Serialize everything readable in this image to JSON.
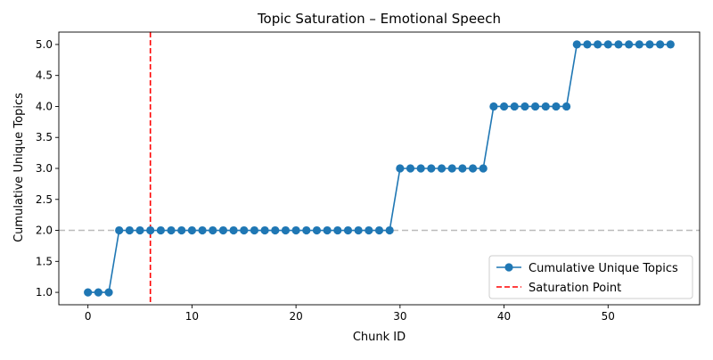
{
  "chart_data": {
    "type": "line",
    "title": "Topic Saturation – Emotional Speech",
    "xlabel": "Chunk ID",
    "ylabel": "Cumulative Unique Topics",
    "xlim": [
      -2.8,
      58.8
    ],
    "ylim": [
      0.8,
      5.2
    ],
    "x_ticks": [
      0,
      10,
      20,
      30,
      40,
      50
    ],
    "x_tick_labels": [
      "0",
      "10",
      "20",
      "30",
      "40",
      "50"
    ],
    "y_ticks": [
      1.0,
      1.5,
      2.0,
      2.5,
      3.0,
      3.5,
      4.0,
      4.5,
      5.0
    ],
    "y_tick_labels": [
      "1.0",
      "1.5",
      "2.0",
      "2.5",
      "3.0",
      "3.5",
      "4.0",
      "4.5",
      "5.0"
    ],
    "grid": false,
    "legend_position": "lower-right",
    "series": [
      {
        "name": "Cumulative Unique Topics",
        "color": "#1f77b4",
        "marker": "circle",
        "x": [
          0,
          1,
          2,
          3,
          4,
          5,
          6,
          7,
          8,
          9,
          10,
          11,
          12,
          13,
          14,
          15,
          16,
          17,
          18,
          19,
          20,
          21,
          22,
          23,
          24,
          25,
          26,
          27,
          28,
          29,
          30,
          31,
          32,
          33,
          34,
          35,
          36,
          37,
          38,
          39,
          40,
          41,
          42,
          43,
          44,
          45,
          46,
          47,
          48,
          49,
          50,
          51,
          52,
          53,
          54,
          55,
          56
        ],
        "y": [
          1,
          1,
          1,
          2,
          2,
          2,
          2,
          2,
          2,
          2,
          2,
          2,
          2,
          2,
          2,
          2,
          2,
          2,
          2,
          2,
          2,
          2,
          2,
          2,
          2,
          2,
          2,
          2,
          2,
          2,
          3,
          3,
          3,
          3,
          3,
          3,
          3,
          3,
          3,
          4,
          4,
          4,
          4,
          4,
          4,
          4,
          4,
          5,
          5,
          5,
          5,
          5,
          5,
          5,
          5,
          5,
          5
        ]
      }
    ],
    "reference_lines": [
      {
        "name": "Saturation Point",
        "orientation": "vertical",
        "x": 6,
        "color": "#ff0000",
        "style": "dashed"
      },
      {
        "name": "",
        "orientation": "horizontal",
        "y": 2.0,
        "color": "#bbbbbb",
        "style": "dashed"
      }
    ],
    "legend": [
      {
        "label": "Cumulative Unique Topics",
        "kind": "line-marker",
        "color": "#1f77b4"
      },
      {
        "label": "Saturation Point",
        "kind": "dashed-line",
        "color": "#ff0000"
      }
    ]
  }
}
